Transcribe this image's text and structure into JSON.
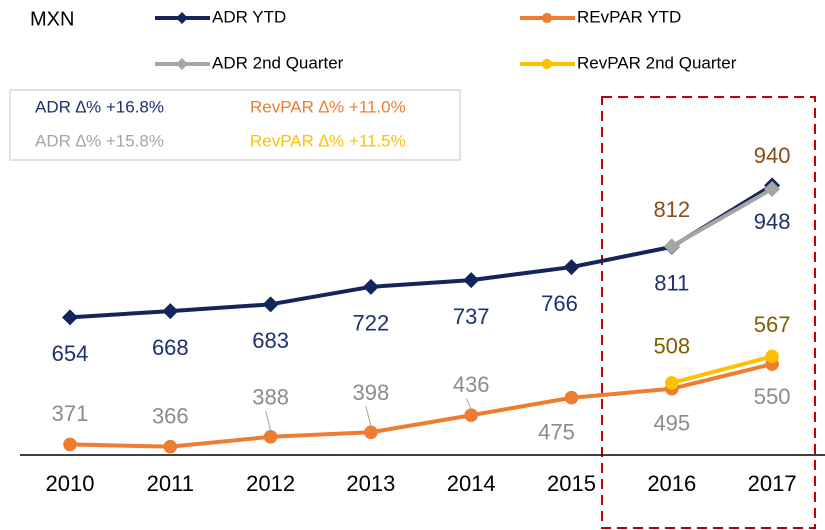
{
  "chart_data": {
    "type": "line",
    "unit_label": "MXN",
    "categories": [
      "2010",
      "2011",
      "2012",
      "2013",
      "2014",
      "2015",
      "2016",
      "2017"
    ],
    "series": [
      {
        "name": "ADR YTD",
        "color": "#13255a",
        "label_color": "#1f3070",
        "marker": "diamond",
        "values": [
          654,
          668,
          683,
          722,
          737,
          766,
          811,
          948
        ]
      },
      {
        "name": "REvPAR YTD",
        "color": "#ed7d31",
        "label_color": "#8c8c8c",
        "marker": "circle",
        "values": [
          371,
          366,
          388,
          398,
          436,
          475,
          495,
          550
        ]
      },
      {
        "name": "ADR 2nd Quarter",
        "color": "#a5a5a5",
        "label_color": "#8b4a1c",
        "marker": "diamond",
        "values": [
          null,
          null,
          null,
          null,
          null,
          null,
          812,
          940
        ]
      },
      {
        "name": "RevPAR 2nd Quarter",
        "color": "#ffc000",
        "label_color": "#7f6000",
        "marker": "circle",
        "values": [
          null,
          null,
          null,
          null,
          null,
          null,
          508,
          567
        ]
      }
    ],
    "annotations": [
      {
        "text": "ADR ∆% +16.8%",
        "color": "#1f3070"
      },
      {
        "text": "RevPAR ∆% +11.0%",
        "color": "#ed7d31"
      },
      {
        "text": "ADR ∆% +15.8%",
        "color": "#a5a5a5"
      },
      {
        "text": "RevPAR ∆% +11.5%",
        "color": "#ffc000"
      }
    ]
  }
}
